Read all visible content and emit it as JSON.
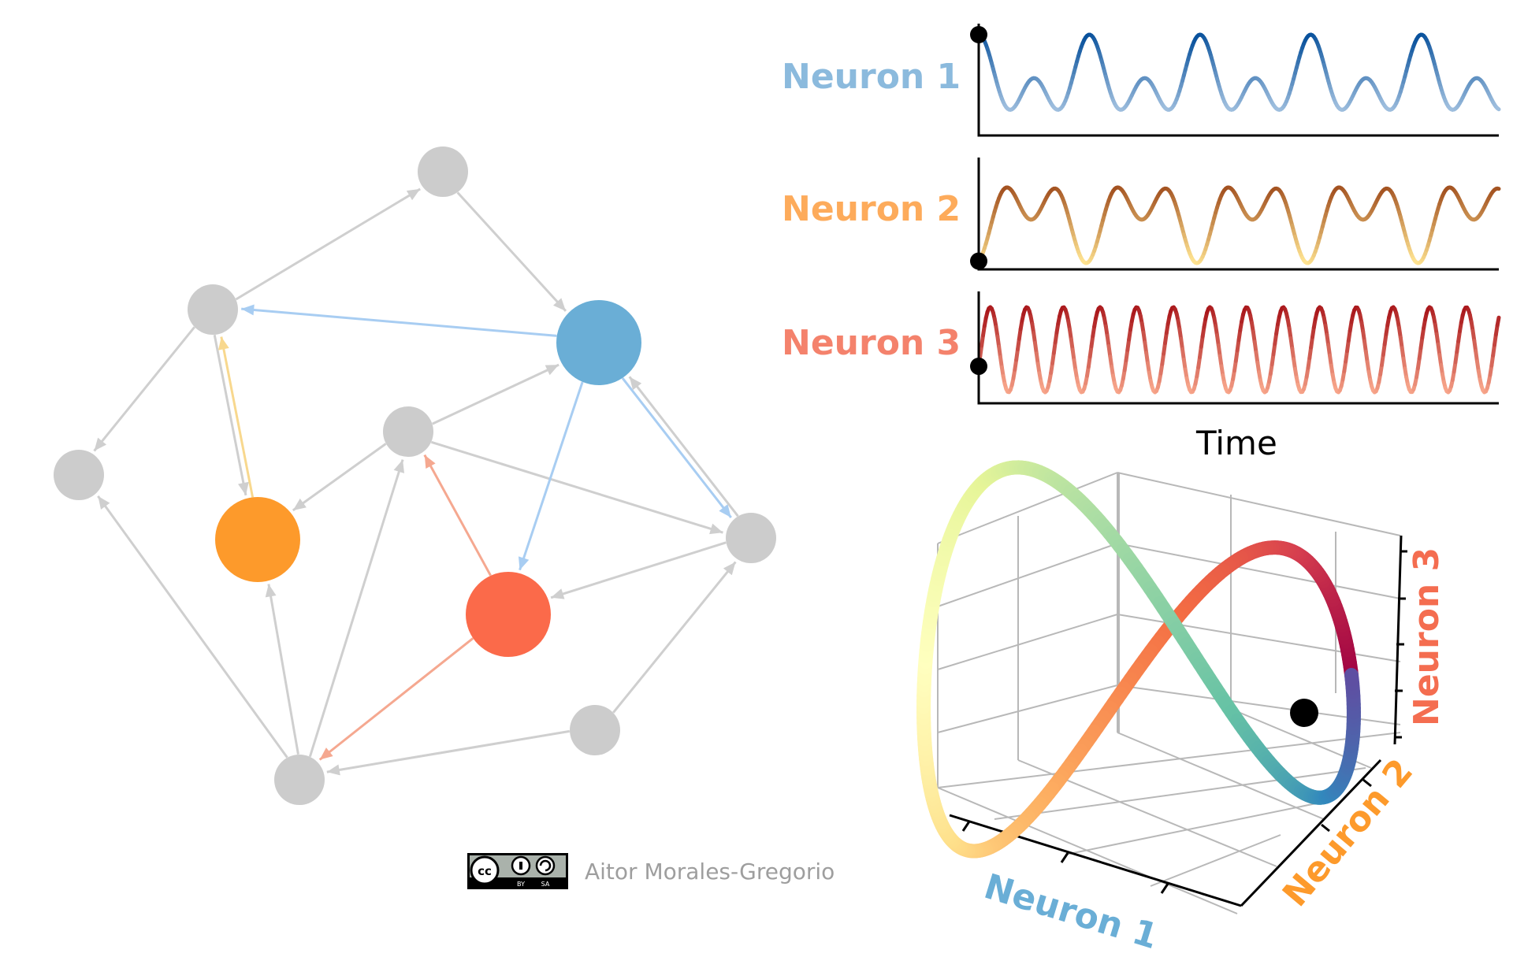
{
  "network": {
    "colors": {
      "inactive_node": "#cccccc",
      "inactive_edge": "#cfcfcf",
      "neuron_1": "#6aaed6",
      "neuron_2": "#fd9a2b",
      "neuron_3": "#fb6a4a",
      "edge_n1": "#a8cdf2",
      "edge_n2": "#f8d88e",
      "edge_n3": "#f5a890"
    }
  },
  "traces": {
    "rows": [
      {
        "label": "Neuron 1",
        "color": "#8bbadd"
      },
      {
        "label": "Neuron 2",
        "color": "#fdab5b"
      },
      {
        "label": "Neuron 3",
        "color": "#f4826c"
      }
    ],
    "xlabel": "Time"
  },
  "phase_space": {
    "axis_labels": {
      "x": "Neuron 1",
      "y": "Neuron 2",
      "z": "Neuron 3"
    },
    "colors": {
      "x": "#6aaed6",
      "y": "#fd9a2b",
      "z": "#f46d50"
    }
  },
  "license": {
    "badge": "CC BY-SA",
    "author": "Aitor Morales-Gregorio"
  }
}
